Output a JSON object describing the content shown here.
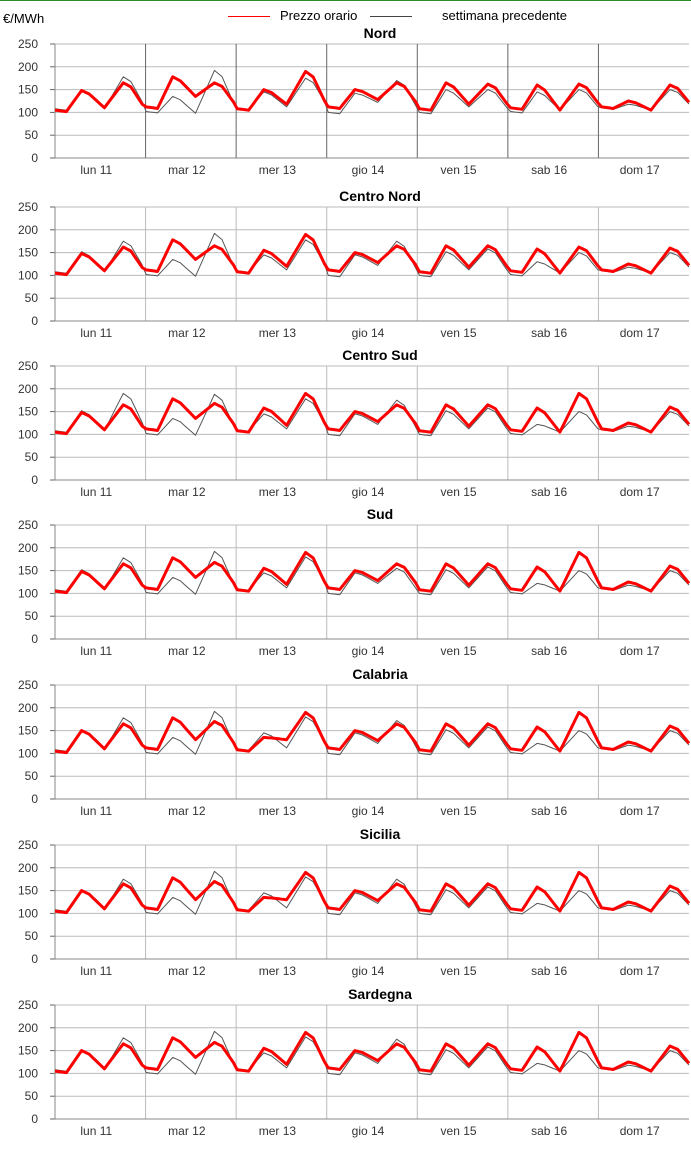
{
  "unit_label": "€/MWh",
  "legend": {
    "current": {
      "label": "Prezzo orario",
      "color": "#ff0000"
    },
    "previous": {
      "label": "settimana precedente",
      "color": "#444444"
    }
  },
  "colors": {
    "frame_line": "#2e8b2e",
    "axis": "#999999",
    "grid": "#bbbbbb",
    "current": "#ff0000",
    "previous": "#555555"
  },
  "chart_data": [
    {
      "type": "line",
      "title": "Nord",
      "x_categories": [
        "lun 11",
        "mar 12",
        "mer 13",
        "gio 14",
        "ven 15",
        "sab 16",
        "dom 17"
      ],
      "ylim": [
        0,
        250
      ],
      "yticks": [
        0,
        50,
        100,
        150,
        200,
        250
      ],
      "x_grid_style": "dark",
      "series": [
        {
          "name": "Prezzo orario",
          "daily_shape": [
            [
              105,
              148,
              110,
              165
            ],
            [
              112,
              178,
              135,
              165
            ],
            [
              108,
              150,
              118,
              190
            ],
            [
              112,
              150,
              128,
              165
            ],
            [
              108,
              165,
              118,
              162
            ],
            [
              110,
              160,
              105,
              162
            ],
            [
              112,
              125,
              105,
              160
            ]
          ]
        },
        {
          "name": "settimana precedente",
          "daily_shape": [
            [
              108,
              150,
              108,
              178
            ],
            [
              102,
              135,
              98,
              192
            ],
            [
              110,
              145,
              112,
              175
            ],
            [
              100,
              142,
              122,
              170
            ],
            [
              100,
              150,
              112,
              150
            ],
            [
              102,
              145,
              105,
              150
            ],
            [
              110,
              118,
              105,
              150
            ]
          ]
        }
      ]
    },
    {
      "type": "line",
      "title": "Centro Nord",
      "x_categories": [
        "lun 11",
        "mar 12",
        "mer 13",
        "gio 14",
        "ven 15",
        "sab 16",
        "dom 17"
      ],
      "ylim": [
        0,
        250
      ],
      "yticks": [
        0,
        50,
        100,
        150,
        200,
        250
      ],
      "x_grid_style": "light",
      "series": [
        {
          "name": "Prezzo orario",
          "daily_shape": [
            [
              105,
              148,
              110,
              162
            ],
            [
              112,
              178,
              135,
              165
            ],
            [
              108,
              155,
              120,
              190
            ],
            [
              112,
              150,
              128,
              165
            ],
            [
              108,
              165,
              118,
              165
            ],
            [
              110,
              158,
              105,
              162
            ],
            [
              112,
              125,
              105,
              160
            ]
          ]
        },
        {
          "name": "settimana precedente",
          "daily_shape": [
            [
              108,
              152,
              108,
              175
            ],
            [
              102,
              135,
              98,
              192
            ],
            [
              110,
              145,
              112,
              178
            ],
            [
              100,
              145,
              122,
              175
            ],
            [
              100,
              152,
              112,
              158
            ],
            [
              102,
              130,
              105,
              150
            ],
            [
              110,
              118,
              105,
              150
            ]
          ]
        }
      ]
    },
    {
      "type": "line",
      "title": "Centro Sud",
      "x_categories": [
        "lun 11",
        "mar 12",
        "mer 13",
        "gio 14",
        "ven 15",
        "sab 16",
        "dom 17"
      ],
      "ylim": [
        0,
        250
      ],
      "yticks": [
        0,
        50,
        100,
        150,
        200,
        250
      ],
      "x_grid_style": "light",
      "series": [
        {
          "name": "Prezzo orario",
          "daily_shape": [
            [
              105,
              148,
              110,
              165
            ],
            [
              112,
              178,
              135,
              168
            ],
            [
              108,
              158,
              120,
              190
            ],
            [
              112,
              150,
              128,
              165
            ],
            [
              108,
              165,
              118,
              165
            ],
            [
              110,
              158,
              105,
              190
            ],
            [
              112,
              125,
              105,
              160
            ]
          ]
        },
        {
          "name": "settimana precedente",
          "daily_shape": [
            [
              108,
              152,
              108,
              190
            ],
            [
              102,
              135,
              98,
              188
            ],
            [
              110,
              145,
              112,
              178
            ],
            [
              100,
              145,
              122,
              175
            ],
            [
              100,
              152,
              112,
              158
            ],
            [
              102,
              122,
              105,
              150
            ],
            [
              110,
              118,
              105,
              150
            ]
          ]
        }
      ]
    },
    {
      "type": "line",
      "title": "Sud",
      "x_categories": [
        "lun 11",
        "mar 12",
        "mer 13",
        "gio 14",
        "ven 15",
        "sab 16",
        "dom 17"
      ],
      "ylim": [
        0,
        250
      ],
      "yticks": [
        0,
        50,
        100,
        150,
        200,
        250
      ],
      "x_grid_style": "light",
      "series": [
        {
          "name": "Prezzo orario",
          "daily_shape": [
            [
              105,
              148,
              110,
              165
            ],
            [
              112,
              178,
              135,
              168
            ],
            [
              108,
              155,
              120,
              190
            ],
            [
              112,
              150,
              128,
              165
            ],
            [
              108,
              165,
              118,
              165
            ],
            [
              110,
              158,
              105,
              190
            ],
            [
              112,
              125,
              105,
              160
            ]
          ]
        },
        {
          "name": "settimana precedente",
          "daily_shape": [
            [
              108,
              152,
              108,
              178
            ],
            [
              102,
              135,
              98,
              192
            ],
            [
              110,
              145,
              112,
              180
            ],
            [
              100,
              145,
              122,
              155
            ],
            [
              100,
              152,
              112,
              158
            ],
            [
              102,
              122,
              105,
              150
            ],
            [
              110,
              118,
              105,
              150
            ]
          ]
        }
      ]
    },
    {
      "type": "line",
      "title": "Calabria",
      "x_categories": [
        "lun 11",
        "mar 12",
        "mer 13",
        "gio 14",
        "ven 15",
        "sab 16",
        "dom 17"
      ],
      "ylim": [
        0,
        250
      ],
      "yticks": [
        0,
        50,
        100,
        150,
        200,
        250
      ],
      "x_grid_style": "light",
      "series": [
        {
          "name": "Prezzo orario",
          "daily_shape": [
            [
              105,
              150,
              110,
              165
            ],
            [
              112,
              178,
              130,
              170
            ],
            [
              108,
              135,
              130,
              190
            ],
            [
              112,
              150,
              128,
              165
            ],
            [
              108,
              165,
              118,
              165
            ],
            [
              110,
              158,
              105,
              190
            ],
            [
              112,
              125,
              105,
              160
            ]
          ]
        },
        {
          "name": "settimana precedente",
          "daily_shape": [
            [
              108,
              152,
              108,
              178
            ],
            [
              102,
              135,
              98,
              192
            ],
            [
              110,
              145,
              112,
              180
            ],
            [
              100,
              145,
              122,
              172
            ],
            [
              100,
              152,
              112,
              158
            ],
            [
              102,
              122,
              105,
              150
            ],
            [
              110,
              118,
              105,
              150
            ]
          ]
        }
      ]
    },
    {
      "type": "line",
      "title": "Sicilia",
      "x_categories": [
        "lun 11",
        "mar 12",
        "mer 13",
        "gio 14",
        "ven 15",
        "sab 16",
        "dom 17"
      ],
      "ylim": [
        0,
        250
      ],
      "yticks": [
        0,
        50,
        100,
        150,
        200,
        250
      ],
      "x_grid_style": "light",
      "series": [
        {
          "name": "Prezzo orario",
          "daily_shape": [
            [
              105,
              150,
              110,
              165
            ],
            [
              112,
              178,
              130,
              170
            ],
            [
              108,
              135,
              130,
              190
            ],
            [
              112,
              150,
              128,
              165
            ],
            [
              108,
              165,
              118,
              165
            ],
            [
              110,
              158,
              105,
              190
            ],
            [
              112,
              125,
              105,
              160
            ]
          ]
        },
        {
          "name": "settimana precedente",
          "daily_shape": [
            [
              108,
              152,
              108,
              175
            ],
            [
              102,
              135,
              98,
              192
            ],
            [
              110,
              145,
              112,
              180
            ],
            [
              100,
              145,
              122,
              175
            ],
            [
              100,
              152,
              112,
              158
            ],
            [
              102,
              122,
              105,
              150
            ],
            [
              110,
              118,
              105,
              150
            ]
          ]
        }
      ]
    },
    {
      "type": "line",
      "title": "Sardegna",
      "x_categories": [
        "lun 11",
        "mar 12",
        "mer 13",
        "gio 14",
        "ven 15",
        "sab 16",
        "dom 17"
      ],
      "ylim": [
        0,
        250
      ],
      "yticks": [
        0,
        50,
        100,
        150,
        200,
        250
      ],
      "x_grid_style": "light",
      "series": [
        {
          "name": "Prezzo orario",
          "daily_shape": [
            [
              105,
              150,
              110,
              165
            ],
            [
              112,
              178,
              135,
              168
            ],
            [
              108,
              155,
              120,
              190
            ],
            [
              112,
              150,
              128,
              165
            ],
            [
              108,
              165,
              118,
              165
            ],
            [
              110,
              158,
              105,
              190
            ],
            [
              112,
              125,
              105,
              160
            ]
          ]
        },
        {
          "name": "settimana precedente",
          "daily_shape": [
            [
              108,
              152,
              108,
              178
            ],
            [
              102,
              135,
              98,
              192
            ],
            [
              110,
              145,
              112,
              180
            ],
            [
              100,
              145,
              122,
              175
            ],
            [
              100,
              152,
              112,
              158
            ],
            [
              102,
              122,
              105,
              150
            ],
            [
              110,
              118,
              105,
              150
            ]
          ]
        }
      ]
    }
  ]
}
